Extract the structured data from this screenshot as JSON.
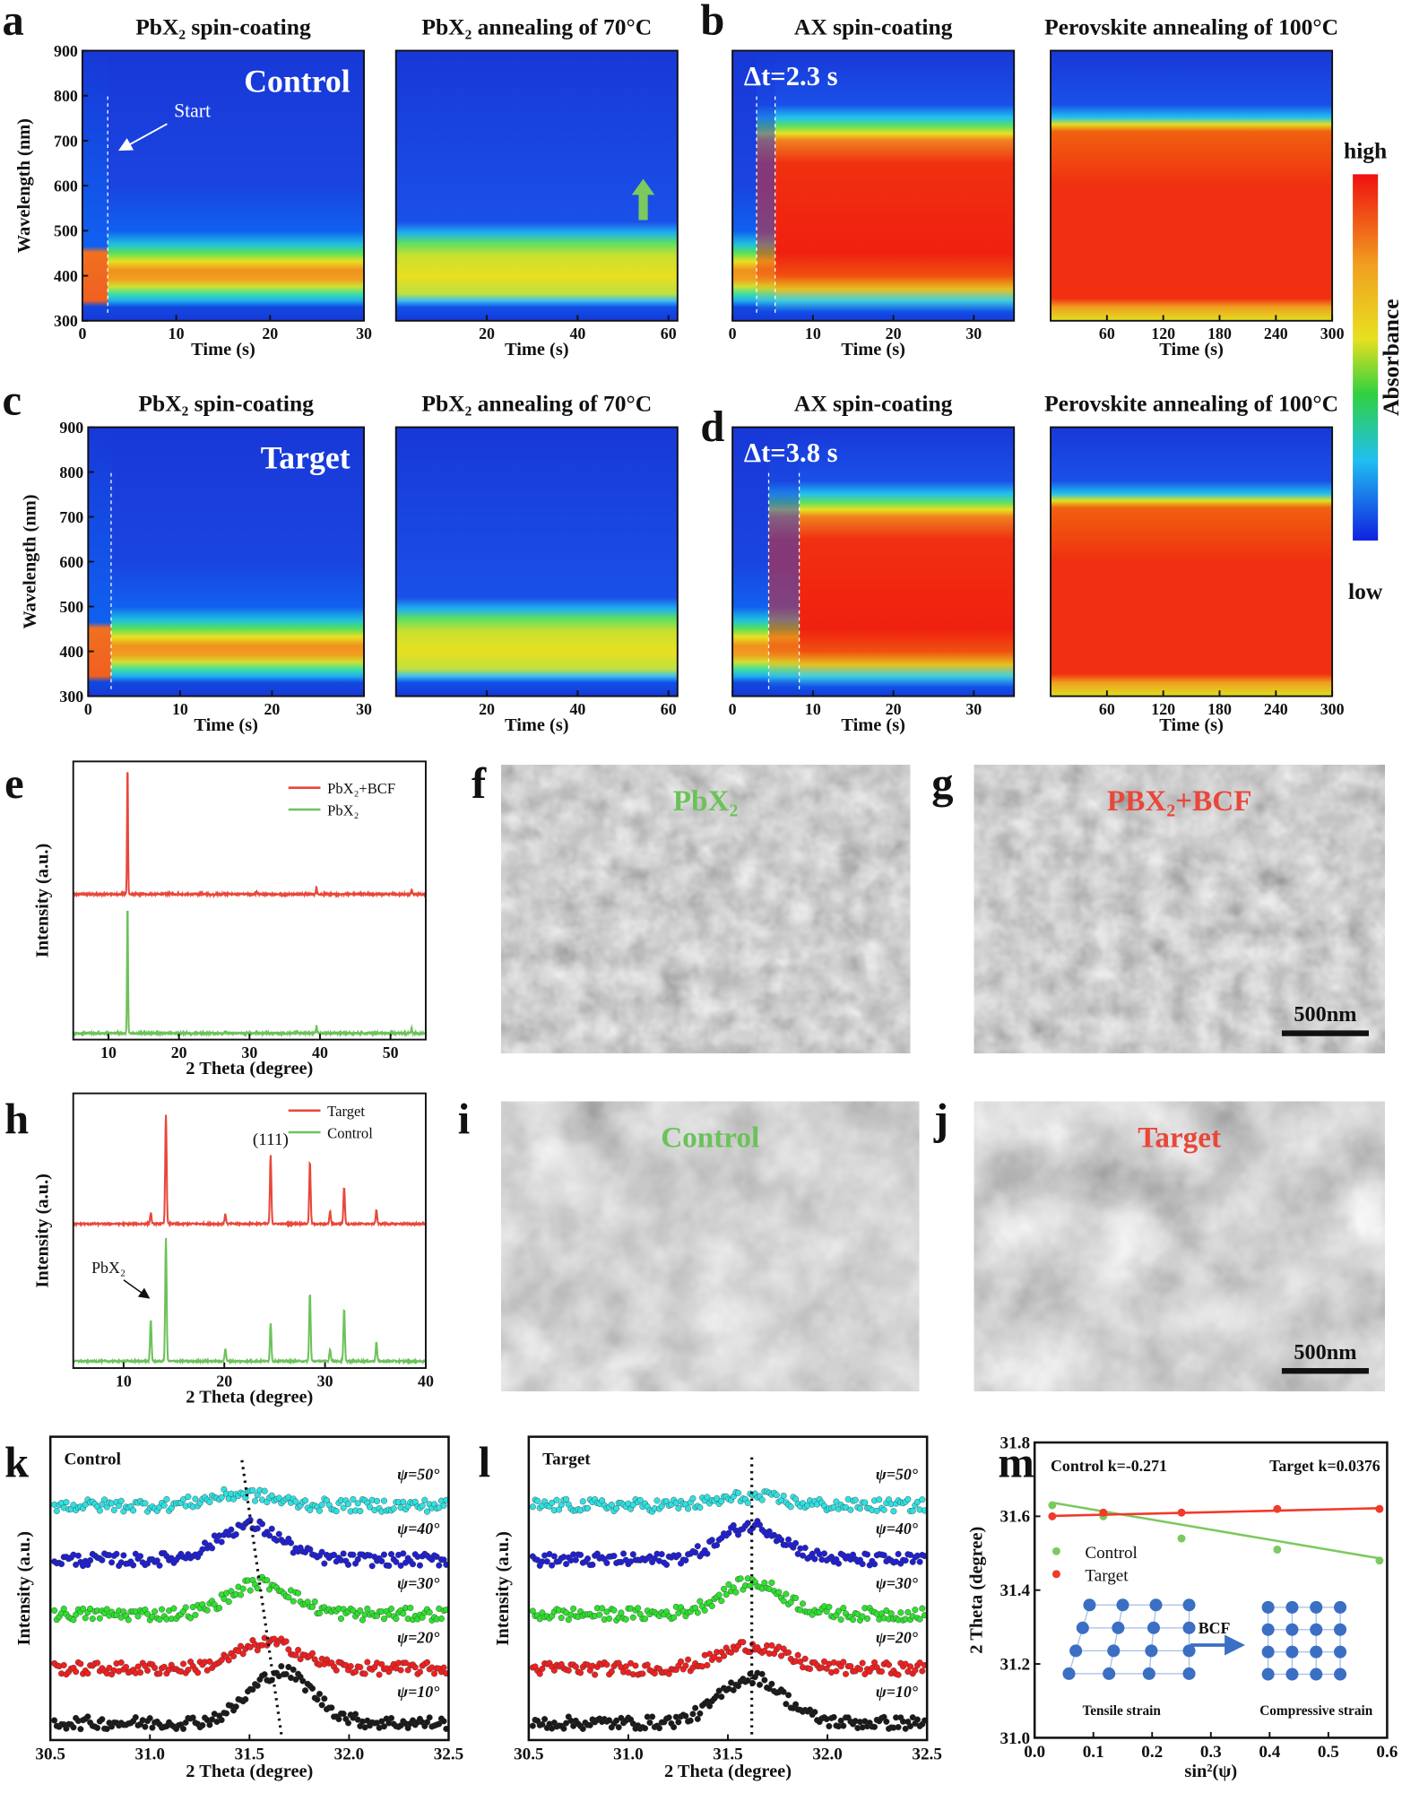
{
  "panel_labels": [
    "a",
    "b",
    "c",
    "d",
    "e",
    "f",
    "g",
    "h",
    "i",
    "j",
    "k",
    "l",
    "m"
  ],
  "colorbar": {
    "high_label": "high",
    "low_label": "low",
    "title": "Absorbance"
  },
  "chart_data": [
    {
      "type": "heatmap",
      "kind": "spin",
      "title": "PbX₂ spin-coating",
      "xlabel": "Time (s)",
      "ylabel": "Wavelength (nm)",
      "xlim": [
        0,
        30
      ],
      "ylim": [
        300,
        900
      ],
      "xticks": [
        "0",
        "10",
        "20",
        "30"
      ],
      "yticks": [
        "300",
        "400",
        "500",
        "600",
        "700",
        "800",
        "900"
      ],
      "start_time": 2.7,
      "markers": [
        2.7
      ],
      "annotations": {
        "sample": "Control",
        "start": "Start"
      }
    },
    {
      "type": "heatmap",
      "kind": "anneal",
      "title": "PbX₂ annealing of 70°C",
      "xlabel": "Time (s)",
      "ylabel": "",
      "xlim": [
        0,
        62
      ],
      "ylim": [
        300,
        900
      ],
      "xticks": [
        "20",
        "40",
        "60"
      ],
      "yticks": [],
      "markers": [],
      "annotations": {
        "arrow": "up-arrow"
      }
    },
    {
      "type": "heatmap",
      "kind": "ax",
      "title": "AX spin-coating",
      "xlabel": "Time (s)",
      "ylabel": "",
      "xlim": [
        0,
        35
      ],
      "ylim": [
        300,
        900
      ],
      "xticks": [
        "0",
        "10",
        "20",
        "30"
      ],
      "yticks": [],
      "markers": [
        3.0,
        5.3
      ],
      "annotations": {
        "delta_t": "Δt=2.3 s"
      }
    },
    {
      "type": "heatmap",
      "kind": "perov",
      "title": "Perovskite annealing of 100°C",
      "xlabel": "Time (s)",
      "ylabel": "",
      "xlim": [
        0,
        300
      ],
      "ylim": [
        300,
        900
      ],
      "xticks": [
        "60",
        "120",
        "180",
        "240",
        "300"
      ],
      "yticks": [],
      "markers": [],
      "annotations": {}
    },
    {
      "type": "heatmap",
      "kind": "spin",
      "title": "PbX₂ spin-coating",
      "xlabel": "Time (s)",
      "ylabel": "Wavelength (nm)",
      "xlim": [
        0,
        30
      ],
      "ylim": [
        300,
        900
      ],
      "xticks": [
        "0",
        "10",
        "20",
        "30"
      ],
      "yticks": [
        "300",
        "400",
        "500",
        "600",
        "700",
        "800",
        "900"
      ],
      "start_time": 2.5,
      "markers": [
        2.5
      ],
      "annotations": {
        "sample": "Target"
      }
    },
    {
      "type": "heatmap",
      "kind": "anneal",
      "title": "PbX₂ annealing of 70°C",
      "xlabel": "Time (s)",
      "ylabel": "",
      "xlim": [
        0,
        62
      ],
      "ylim": [
        300,
        900
      ],
      "xticks": [
        "20",
        "40",
        "60"
      ],
      "yticks": [],
      "markers": [],
      "annotations": {}
    },
    {
      "type": "heatmap",
      "kind": "ax",
      "title": "AX spin-coating",
      "xlabel": "Time (s)",
      "ylabel": "",
      "xlim": [
        0,
        35
      ],
      "ylim": [
        300,
        900
      ],
      "xticks": [
        "0",
        "10",
        "20",
        "30"
      ],
      "yticks": [],
      "markers": [
        4.5,
        8.3
      ],
      "annotations": {
        "delta_t": "Δt=3.8 s"
      }
    },
    {
      "type": "heatmap",
      "kind": "perov",
      "title": "Perovskite annealing of 100°C",
      "xlabel": "Time (s)",
      "ylabel": "",
      "xlim": [
        0,
        300
      ],
      "ylim": [
        300,
        900
      ],
      "xticks": [
        "60",
        "120",
        "180",
        "240",
        "300"
      ],
      "yticks": [],
      "markers": [],
      "annotations": {}
    },
    {
      "type": "line",
      "title": "",
      "xlabel": "2 Theta (degree)",
      "ylabel": "Intensity (a.u.)",
      "xlim": [
        5,
        55
      ],
      "ylim": [
        0,
        2.2
      ],
      "xticks": [
        "10",
        "20",
        "30",
        "40",
        "50"
      ],
      "yticks": [],
      "series": [
        {
          "name": "PbX₂+BCF",
          "color": "#e8473a",
          "offset": 1.1,
          "peaks": [
            [
              12.7,
              1.0
            ],
            [
              26.5,
              0.01
            ],
            [
              31.0,
              0.02
            ],
            [
              39.5,
              0.06
            ],
            [
              53.0,
              0.04
            ]
          ]
        },
        {
          "name": "PbX₂",
          "color": "#6cc25a",
          "offset": 0.0,
          "peaks": [
            [
              12.7,
              1.0
            ],
            [
              26.5,
              0.01
            ],
            [
              31.0,
              0.02
            ],
            [
              39.5,
              0.06
            ],
            [
              53.0,
              0.04
            ]
          ]
        }
      ],
      "legend": "top-right"
    },
    {
      "type": "line",
      "title": "",
      "xlabel": "2 Theta (degree)",
      "ylabel": "Intensity (a.u.)",
      "xlim": [
        5,
        40
      ],
      "ylim": [
        0,
        2.0
      ],
      "xticks": [
        "10",
        "20",
        "30",
        "40"
      ],
      "yticks": [],
      "series": [
        {
          "name": "Target",
          "color": "#e8473a",
          "offset": 1.0,
          "peaks": [
            [
              12.7,
              0.08
            ],
            [
              14.2,
              0.8
            ],
            [
              20.1,
              0.07
            ],
            [
              24.6,
              0.5
            ],
            [
              28.5,
              0.45
            ],
            [
              30.5,
              0.09
            ],
            [
              31.9,
              0.27
            ],
            [
              35.1,
              0.1
            ]
          ]
        },
        {
          "name": "Control",
          "color": "#6cc25a",
          "offset": 0.0,
          "peaks": [
            [
              12.7,
              0.3
            ],
            [
              14.2,
              0.9
            ],
            [
              20.1,
              0.09
            ],
            [
              24.6,
              0.28
            ],
            [
              28.5,
              0.5
            ],
            [
              30.5,
              0.09
            ],
            [
              31.9,
              0.38
            ],
            [
              35.1,
              0.14
            ]
          ]
        }
      ],
      "legend": "top-right",
      "annotations": {
        "peak_111": "(111)",
        "pbx2": "PbX₂"
      }
    },
    {
      "type": "scatter",
      "title": "",
      "xlabel": "2 Theta (degree)",
      "ylabel": "Intensity (a.u.)",
      "xlim": [
        30.5,
        32.5
      ],
      "ylim": [
        -0.3,
        5.0
      ],
      "xticks": [
        "30.5",
        "31.0",
        "31.5",
        "32.0",
        "32.5"
      ],
      "yticks": [],
      "sample": "Control",
      "series": [
        {
          "name": "ψ=10°",
          "color": "#1a1a1a",
          "peak_center": 31.66,
          "amplitude": 0.9
        },
        {
          "name": "ψ=20°",
          "color": "#f02020",
          "peak_center": 31.6,
          "amplitude": 0.45
        },
        {
          "name": "ψ=30°",
          "color": "#30e030",
          "peak_center": 31.56,
          "amplitude": 0.55
        },
        {
          "name": "ψ=40°",
          "color": "#2020d0",
          "peak_center": 31.5,
          "amplitude": 0.6
        },
        {
          "name": "ψ=50°",
          "color": "#30e0e0",
          "peak_center": 31.46,
          "amplitude": 0.2
        }
      ]
    },
    {
      "type": "scatter",
      "title": "",
      "xlabel": "2 Theta (degree)",
      "ylabel": "Intensity (a.u.)",
      "xlim": [
        30.5,
        32.5
      ],
      "ylim": [
        -0.3,
        5.0
      ],
      "xticks": [
        "30.5",
        "31.0",
        "31.5",
        "32.0",
        "32.5"
      ],
      "yticks": [],
      "sample": "Target",
      "series": [
        {
          "name": "ψ=10°",
          "color": "#1a1a1a",
          "peak_center": 31.62,
          "amplitude": 0.8
        },
        {
          "name": "ψ=20°",
          "color": "#f02020",
          "peak_center": 31.62,
          "amplitude": 0.4
        },
        {
          "name": "ψ=30°",
          "color": "#30e030",
          "peak_center": 31.62,
          "amplitude": 0.55
        },
        {
          "name": "ψ=40°",
          "color": "#2020d0",
          "peak_center": 31.62,
          "amplitude": 0.6
        },
        {
          "name": "ψ=50°",
          "color": "#30e0e0",
          "peak_center": 31.62,
          "amplitude": 0.15
        }
      ]
    },
    {
      "type": "scatter",
      "title": "",
      "xlabel": "sin²(ψ)",
      "ylabel": "2 Theta (degree)",
      "xlim": [
        0,
        0.6
      ],
      "ylim": [
        31.0,
        31.8
      ],
      "xticks": [
        "0.0",
        "0.1",
        "0.2",
        "0.3",
        "0.4",
        "0.5",
        "0.6"
      ],
      "yticks": [
        "31.0",
        "31.2",
        "31.4",
        "31.6",
        "31.8"
      ],
      "series": [
        {
          "name": "Control",
          "color": "#7cc95e",
          "x": [
            0.03,
            0.117,
            0.25,
            0.413,
            0.587
          ],
          "y": [
            31.63,
            31.6,
            31.54,
            31.51,
            31.48
          ],
          "fit_slope": -0.271,
          "fit_label": "Control k=-0.271"
        },
        {
          "name": "Target",
          "color": "#f03a2a",
          "x": [
            0.03,
            0.117,
            0.25,
            0.413,
            0.587
          ],
          "y": [
            31.6,
            31.61,
            31.61,
            31.62,
            31.62
          ],
          "fit_slope": 0.0376,
          "fit_label": "Target k=0.0376"
        }
      ],
      "inset": {
        "arrow_label": "BCF",
        "left_label": "Tensile strain",
        "right_label": "Compressive strain"
      },
      "legend": "center-left"
    }
  ],
  "images": [
    {
      "label": "PbX₂",
      "label_color": "#6cc25a",
      "scale_bar": ""
    },
    {
      "label": "PBX₂+BCF",
      "label_color": "#e8473a",
      "scale_bar": "500nm"
    },
    {
      "label": "Control",
      "label_color": "#6cc25a",
      "scale_bar": ""
    },
    {
      "label": "Target",
      "label_color": "#e8473a",
      "scale_bar": "500nm"
    }
  ]
}
